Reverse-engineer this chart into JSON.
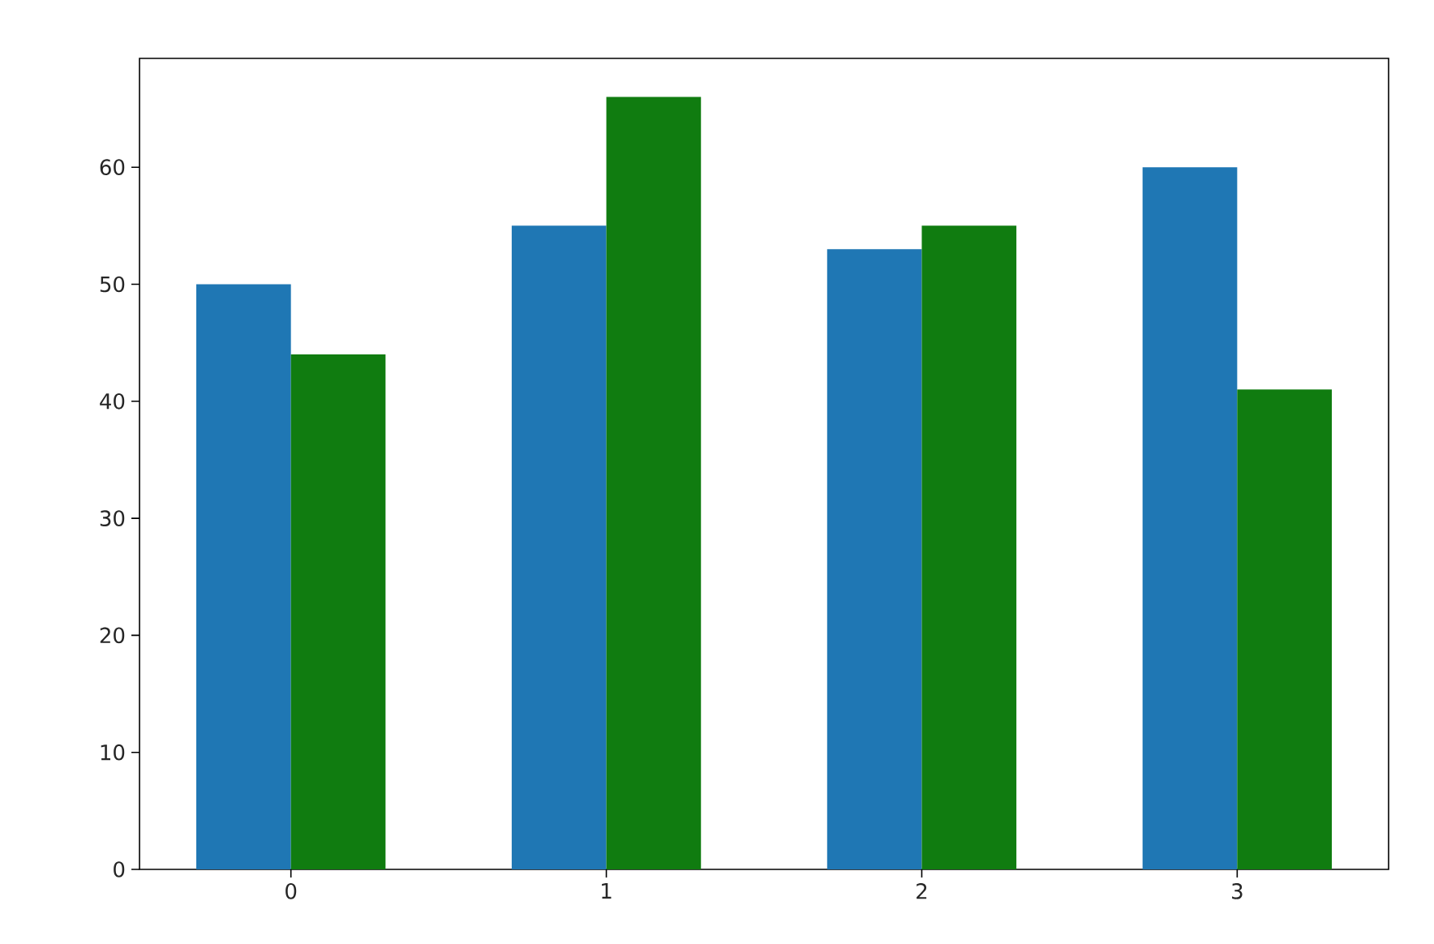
{
  "chart_data": {
    "type": "bar",
    "categories": [
      "0",
      "1",
      "2",
      "3"
    ],
    "series": [
      {
        "color": "#1f77b4",
        "values": [
          50,
          55,
          53,
          60
        ]
      },
      {
        "color": "#107c10",
        "values": [
          44,
          66,
          55,
          41
        ]
      }
    ],
    "ylim": [
      0,
      69.3
    ],
    "yticks": [
      0,
      10,
      20,
      30,
      40,
      50,
      60
    ]
  }
}
